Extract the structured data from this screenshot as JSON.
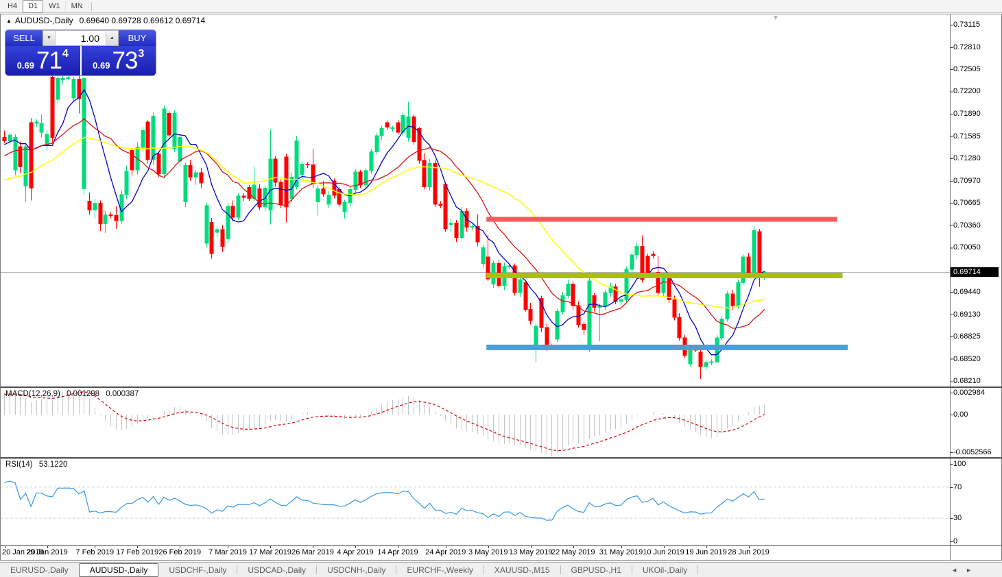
{
  "toolbar": {
    "timeframes": [
      {
        "label": "H4",
        "active": false
      },
      {
        "label": "D1",
        "active": true
      },
      {
        "label": "W1",
        "active": false
      },
      {
        "label": "MN",
        "active": false
      }
    ]
  },
  "chart": {
    "title_marker": "▲",
    "symbol": "AUDUSD-,Daily",
    "ohlc_text": "0.69640 0.69728 0.69612 0.69714",
    "collapse_marker": "▼"
  },
  "trade_panel": {
    "sell_label": "SELL",
    "buy_label": "BUY",
    "volume": "1.00",
    "spinner_down": "▼",
    "spinner_up": "▲",
    "sell_price": {
      "prefix": "0.69",
      "big": "71",
      "sup": "4"
    },
    "buy_price": {
      "prefix": "0.69",
      "big": "73",
      "sup": "3"
    }
  },
  "price_axis": {
    "ticks": [
      "0.73115",
      "0.72810",
      "0.72505",
      "0.72200",
      "0.71890",
      "0.71585",
      "0.71280",
      "0.70970",
      "0.70665",
      "0.70360",
      "0.70050",
      "0.69440",
      "0.69130",
      "0.68825",
      "0.68520",
      "0.68210"
    ],
    "current_price": "0.69714"
  },
  "date_axis": {
    "ticks": [
      {
        "label": "20 Jan 2019",
        "bar": 0
      },
      {
        "label": "29 Jan 2019",
        "bar": 8
      },
      {
        "label": "7 Feb 2019",
        "bar": 17
      },
      {
        "label": "17 Feb 2019",
        "bar": 25
      },
      {
        "label": "26 Feb 2019",
        "bar": 33
      },
      {
        "label": "7 Mar 2019",
        "bar": 42
      },
      {
        "label": "17 Mar 2019",
        "bar": 50
      },
      {
        "label": "26 Mar 2019",
        "bar": 58
      },
      {
        "label": "4 Apr 2019",
        "bar": 66
      },
      {
        "label": "14 Apr 2019",
        "bar": 74
      },
      {
        "label": "24 Apr 2019",
        "bar": 83
      },
      {
        "label": "3 May 2019",
        "bar": 91
      },
      {
        "label": "13 May 2019",
        "bar": 99
      },
      {
        "label": "22 May 2019",
        "bar": 107
      },
      {
        "label": "31 May 2019",
        "bar": 116
      },
      {
        "label": "10 Jun 2019",
        "bar": 124
      },
      {
        "label": "19 Jun 2019",
        "bar": 132
      },
      {
        "label": "28 Jun 2019",
        "bar": 140
      }
    ]
  },
  "indicators": {
    "macd": {
      "name": "MACD(12,26,9)",
      "value_main": "0.001298",
      "value_signal": "0.000387",
      "axis_max": "0.002984",
      "axis_zero": "0.00",
      "axis_min": "-0.0052566",
      "fast": 12,
      "slow": 26,
      "signal": 9
    },
    "rsi": {
      "name": "RSI(14)",
      "value": "53.1220",
      "period": 14,
      "axis": [
        "100",
        "70",
        "30",
        "0"
      ],
      "levels": [
        70,
        30
      ]
    }
  },
  "tabs": {
    "items": [
      {
        "label": "EURUSD-,Daily",
        "active": false
      },
      {
        "label": "AUDUSD-,Daily",
        "active": true
      },
      {
        "label": "USDCHF-,Daily",
        "active": false
      },
      {
        "label": "USDCAD-,Daily",
        "active": false
      },
      {
        "label": "USDCNH-,Daily",
        "active": false
      },
      {
        "label": "EURCHF-,Weekly",
        "active": false
      },
      {
        "label": "XAUUSD-,M15",
        "active": false
      },
      {
        "label": "GBPUSD-,H1",
        "active": false
      },
      {
        "label": "UKOil-,Daily",
        "active": false
      }
    ],
    "scroll_left": "◄",
    "scroll_right": "►"
  },
  "colors": {
    "bull": "#00DC7D",
    "bear": "#FF0000",
    "ma_fast": "#0202C8",
    "ma_mid": "#DE1212",
    "ma_slow": "#FFFF00",
    "hline_red": "#F25C5C",
    "hline_olive": "#A9BF04",
    "hline_blue": "#4A9EDC",
    "bid_line": "#B4B4B4",
    "macd_hist": "#C4C4C4",
    "macd_signal": "#D40000",
    "rsi_line": "#3498E8",
    "level_dash": "#CFCFCF"
  },
  "chart_data": {
    "type": "candlestick",
    "symbol": "AUDUSD",
    "timeframe": "Daily",
    "price_range_visible": [
      0.6821,
      0.732
    ],
    "bid": 0.69714,
    "last_candle": {
      "open": 0.6964,
      "high": 0.69728,
      "low": 0.69612,
      "close": 0.69714
    },
    "moving_averages": [
      {
        "type": "sma",
        "period": 7,
        "color_key": "ma_fast"
      },
      {
        "type": "sma",
        "period": 15,
        "color_key": "ma_mid"
      },
      {
        "type": "sma",
        "period": 30,
        "color_key": "ma_slow"
      }
    ],
    "horizontal_lines": [
      {
        "price": 0.7044,
        "bar_start": 91,
        "bar_end": 157,
        "color_key": "hline_red",
        "thickness": 7
      },
      {
        "price": 0.69667,
        "bar_start": 91,
        "bar_end": 158,
        "color_key": "hline_olive",
        "thickness": 8
      },
      {
        "price": 0.68677,
        "bar_start": 91,
        "bar_end": 159,
        "color_key": "hline_blue",
        "thickness": 8
      }
    ],
    "warmup_closes": [
      0.7025,
      0.7032,
      0.7028,
      0.704,
      0.7052,
      0.7046,
      0.706,
      0.7072,
      0.7066,
      0.708,
      0.7092,
      0.7085,
      0.7098,
      0.711,
      0.7104,
      0.7118,
      0.7125,
      0.7119,
      0.713,
      0.7138,
      0.7132,
      0.7142,
      0.715,
      0.7144,
      0.7152,
      0.7156
    ],
    "candles_ohlc": [
      [
        0.7157,
        0.7166,
        0.7149,
        0.7152
      ],
      [
        0.7152,
        0.7163,
        0.7147,
        0.716
      ],
      [
        0.7112,
        0.7161,
        0.7105,
        0.7157
      ],
      [
        0.7144,
        0.7151,
        0.7108,
        0.7116
      ],
      [
        0.709,
        0.7147,
        0.7068,
        0.7144
      ],
      [
        0.7177,
        0.7183,
        0.707,
        0.7087
      ],
      [
        0.7176,
        0.7182,
        0.7171,
        0.7178
      ],
      [
        0.7164,
        0.7188,
        0.7157,
        0.7176
      ],
      [
        0.7147,
        0.7167,
        0.7139,
        0.7161
      ],
      [
        0.724,
        0.7244,
        0.7149,
        0.7157
      ],
      [
        0.7209,
        0.7242,
        0.7204,
        0.7238
      ],
      [
        0.7236,
        0.7241,
        0.723,
        0.7238
      ],
      [
        0.7238,
        0.7241,
        0.7235,
        0.7239
      ],
      [
        0.7211,
        0.724,
        0.7206,
        0.7237
      ],
      [
        0.7237,
        0.7241,
        0.719,
        0.721
      ],
      [
        0.7086,
        0.724,
        0.7078,
        0.7238
      ],
      [
        0.7069,
        0.7081,
        0.705,
        0.7057
      ],
      [
        0.7057,
        0.7072,
        0.7045,
        0.7066
      ],
      [
        0.7066,
        0.707,
        0.7028,
        0.7038
      ],
      [
        0.7038,
        0.7056,
        0.7025,
        0.705
      ],
      [
        0.705,
        0.7054,
        0.7045,
        0.7049
      ],
      [
        0.7049,
        0.7062,
        0.7031,
        0.7042
      ],
      [
        0.7042,
        0.7084,
        0.7038,
        0.7078
      ],
      [
        0.7078,
        0.7118,
        0.7072,
        0.711
      ],
      [
        0.7139,
        0.7142,
        0.7104,
        0.7112
      ],
      [
        0.7112,
        0.715,
        0.7106,
        0.7143
      ],
      [
        0.7143,
        0.7171,
        0.7137,
        0.7166
      ],
      [
        0.7178,
        0.7181,
        0.7121,
        0.7126
      ],
      [
        0.7126,
        0.7191,
        0.7119,
        0.7186
      ],
      [
        0.7134,
        0.7137,
        0.7102,
        0.7107
      ],
      [
        0.7107,
        0.7201,
        0.71,
        0.7196
      ],
      [
        0.719,
        0.7193,
        0.7154,
        0.716
      ],
      [
        0.7141,
        0.7194,
        0.7137,
        0.719
      ],
      [
        0.7124,
        0.7161,
        0.7117,
        0.7157
      ],
      [
        0.7068,
        0.7122,
        0.7061,
        0.7118
      ],
      [
        0.7118,
        0.7126,
        0.7097,
        0.7102
      ],
      [
        0.7102,
        0.7112,
        0.7091,
        0.7108
      ],
      [
        0.7108,
        0.7115,
        0.7087,
        0.7094
      ],
      [
        0.7011,
        0.7067,
        0.7006,
        0.7063
      ],
      [
        0.704,
        0.7046,
        0.699,
        0.6997
      ],
      [
        0.7026,
        0.7034,
        0.7019,
        0.703
      ],
      [
        0.703,
        0.7036,
        0.6999,
        0.7007
      ],
      [
        0.7017,
        0.7067,
        0.7011,
        0.7062
      ],
      [
        0.7062,
        0.707,
        0.7041,
        0.7047
      ],
      [
        0.7047,
        0.708,
        0.7043,
        0.7076
      ],
      [
        0.7076,
        0.708,
        0.7069,
        0.7074
      ],
      [
        0.7088,
        0.7091,
        0.7069,
        0.7073
      ],
      [
        0.7073,
        0.7117,
        0.7069,
        0.7091
      ],
      [
        0.7086,
        0.7092,
        0.7057,
        0.7061
      ],
      [
        0.7061,
        0.7091,
        0.7055,
        0.7087
      ],
      [
        0.7057,
        0.7168,
        0.7037,
        0.7127
      ],
      [
        0.7127,
        0.7131,
        0.7089,
        0.7095
      ],
      [
        0.7095,
        0.7099,
        0.7059,
        0.7065
      ],
      [
        0.713,
        0.7134,
        0.704,
        0.7061
      ],
      [
        0.7073,
        0.7108,
        0.7067,
        0.7102
      ],
      [
        0.7089,
        0.7159,
        0.7085,
        0.7152
      ],
      [
        0.7106,
        0.7124,
        0.71,
        0.712
      ],
      [
        0.712,
        0.7123,
        0.7115,
        0.7119
      ],
      [
        0.7119,
        0.7141,
        0.7087,
        0.7093
      ],
      [
        0.7068,
        0.7091,
        0.7049,
        0.7086
      ],
      [
        0.7086,
        0.7097,
        0.7075,
        0.7079
      ],
      [
        0.7065,
        0.7083,
        0.7059,
        0.7077
      ],
      [
        0.7097,
        0.71,
        0.7073,
        0.7077
      ],
      [
        0.7085,
        0.7088,
        0.7061,
        0.7065
      ],
      [
        0.7055,
        0.7071,
        0.7045,
        0.7067
      ],
      [
        0.7067,
        0.7089,
        0.7061,
        0.7085
      ],
      [
        0.7085,
        0.7113,
        0.7081,
        0.7109
      ],
      [
        0.7109,
        0.7112,
        0.7087,
        0.7091
      ],
      [
        0.7091,
        0.7115,
        0.7087,
        0.7111
      ],
      [
        0.7111,
        0.7141,
        0.7107,
        0.7137
      ],
      [
        0.7137,
        0.7163,
        0.7133,
        0.7159
      ],
      [
        0.7159,
        0.7173,
        0.7153,
        0.7169
      ],
      [
        0.7177,
        0.718,
        0.7167,
        0.7171
      ],
      [
        0.7169,
        0.7173,
        0.7165,
        0.717
      ],
      [
        0.7177,
        0.7181,
        0.7161,
        0.7164
      ],
      [
        0.7164,
        0.7191,
        0.7159,
        0.7187
      ],
      [
        0.7157,
        0.7206,
        0.7151,
        0.7185
      ],
      [
        0.7185,
        0.7189,
        0.7147,
        0.7151
      ],
      [
        0.7169,
        0.7171,
        0.7121,
        0.7125
      ],
      [
        0.7125,
        0.7135,
        0.7085,
        0.7089
      ],
      [
        0.7089,
        0.7127,
        0.7083,
        0.7121
      ],
      [
        0.7121,
        0.7125,
        0.7061,
        0.7065
      ],
      [
        0.7065,
        0.7069,
        0.7059,
        0.7063
      ],
      [
        0.7092,
        0.7095,
        0.7027,
        0.7031
      ],
      [
        0.7037,
        0.7045,
        0.7027,
        0.7039
      ],
      [
        0.7039,
        0.7043,
        0.7013,
        0.7019
      ],
      [
        0.7019,
        0.7061,
        0.7015,
        0.7055
      ],
      [
        0.7055,
        0.7059,
        0.7027,
        0.7033
      ],
      [
        0.7033,
        0.7037,
        0.7029,
        0.7034
      ],
      [
        0.7034,
        0.7051,
        0.7007,
        0.7013
      ],
      [
        0.6983,
        0.7009,
        0.6977,
        0.7005
      ],
      [
        0.6992,
        0.7023,
        0.6959,
        0.6962
      ],
      [
        0.6955,
        0.6987,
        0.6949,
        0.6983
      ],
      [
        0.6983,
        0.6989,
        0.6949,
        0.6953
      ],
      [
        0.6953,
        0.6984,
        0.6947,
        0.6979
      ],
      [
        0.6979,
        0.6983,
        0.6975,
        0.698
      ],
      [
        0.698,
        0.6983,
        0.6939,
        0.6943
      ],
      [
        0.6943,
        0.6967,
        0.6937,
        0.6961
      ],
      [
        0.6957,
        0.6959,
        0.6917,
        0.692
      ],
      [
        0.692,
        0.6929,
        0.6899,
        0.6905
      ],
      [
        0.6869,
        0.6901,
        0.6848,
        0.6897
      ],
      [
        0.6935,
        0.6939,
        0.6889,
        0.6895
      ],
      [
        0.6895,
        0.6901,
        0.6863,
        0.6869
      ],
      [
        0.6869,
        0.6873,
        0.6865,
        0.687
      ],
      [
        0.6879,
        0.6921,
        0.6875,
        0.6917
      ],
      [
        0.6917,
        0.6944,
        0.6913,
        0.6939
      ],
      [
        0.6939,
        0.6961,
        0.6935,
        0.6955
      ],
      [
        0.6955,
        0.6959,
        0.6919,
        0.6925
      ],
      [
        0.6925,
        0.6931,
        0.6895,
        0.6899
      ],
      [
        0.6899,
        0.6903,
        0.6885,
        0.6892
      ],
      [
        0.6866,
        0.6963,
        0.6861,
        0.6959
      ],
      [
        0.6939,
        0.6943,
        0.6917,
        0.6923
      ],
      [
        0.6923,
        0.6928,
        0.6876,
        0.6924
      ],
      [
        0.6924,
        0.6947,
        0.6919,
        0.6943
      ],
      [
        0.6943,
        0.6957,
        0.6937,
        0.6951
      ],
      [
        0.6951,
        0.6955,
        0.6927,
        0.6931
      ],
      [
        0.6931,
        0.6937,
        0.6925,
        0.6933
      ],
      [
        0.6933,
        0.6979,
        0.6929,
        0.6975
      ],
      [
        0.6975,
        0.6999,
        0.6971,
        0.6995
      ],
      [
        0.6995,
        0.7011,
        0.6989,
        0.7007
      ],
      [
        0.7007,
        0.7022,
        0.6957,
        0.6961
      ],
      [
        0.6993,
        0.6997,
        0.6965,
        0.6969
      ],
      [
        0.6996,
        0.7,
        0.699,
        0.6994
      ],
      [
        0.6971,
        0.6993,
        0.6939,
        0.6943
      ],
      [
        0.6943,
        0.6971,
        0.6937,
        0.6967
      ],
      [
        0.6967,
        0.6969,
        0.6929,
        0.6933
      ],
      [
        0.6933,
        0.6939,
        0.6905,
        0.6909
      ],
      [
        0.6909,
        0.6915,
        0.6877,
        0.6881
      ],
      [
        0.6881,
        0.6885,
        0.6853,
        0.6857
      ],
      [
        0.6845,
        0.6869,
        0.6841,
        0.6865
      ],
      [
        0.6865,
        0.6867,
        0.6861,
        0.6864
      ],
      [
        0.6861,
        0.6865,
        0.6824,
        0.6841
      ],
      [
        0.6841,
        0.6851,
        0.6837,
        0.6847
      ],
      [
        0.6847,
        0.6851,
        0.6843,
        0.6848
      ],
      [
        0.6848,
        0.6885,
        0.6845,
        0.6881
      ],
      [
        0.6881,
        0.6911,
        0.6877,
        0.6907
      ],
      [
        0.6907,
        0.6945,
        0.6903,
        0.6941
      ],
      [
        0.6941,
        0.6947,
        0.6919,
        0.6925
      ],
      [
        0.6925,
        0.6961,
        0.6921,
        0.6957
      ],
      [
        0.6957,
        0.6996,
        0.6953,
        0.6992
      ],
      [
        0.6992,
        0.6998,
        0.6964,
        0.697
      ],
      [
        0.697,
        0.7035,
        0.6966,
        0.7029
      ],
      [
        0.7027,
        0.7031,
        0.6951,
        0.6964
      ],
      [
        0.6964,
        0.69728,
        0.69612,
        0.69714
      ]
    ]
  }
}
